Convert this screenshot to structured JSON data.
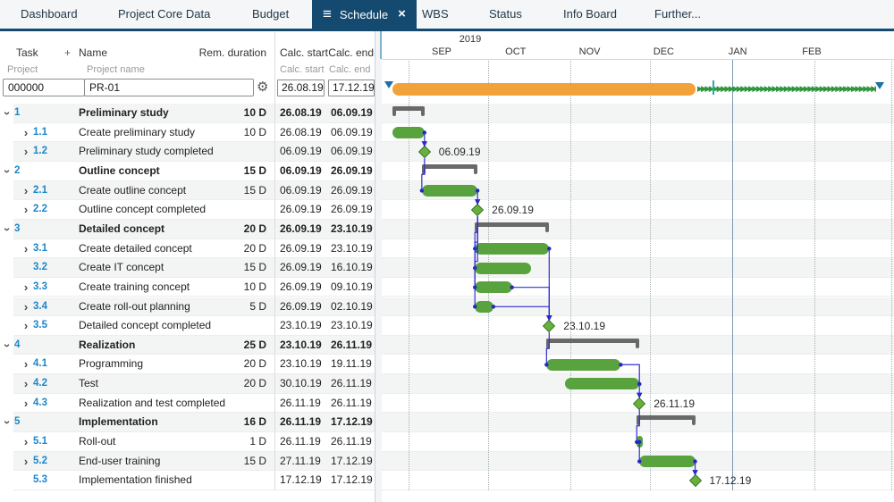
{
  "nav": {
    "tabs": [
      {
        "label": "Dashboard"
      },
      {
        "label": "Project Core Data"
      },
      {
        "label": "Budget"
      },
      {
        "label": "Schedule",
        "active": true
      },
      {
        "label": "WBS"
      },
      {
        "label": "Status"
      },
      {
        "label": "Info Board"
      },
      {
        "label": "Further..."
      }
    ]
  },
  "icons": {
    "hamburger": "≡",
    "close": "×",
    "gear": "⚙",
    "collapse_chevron": "›",
    "plus": "+",
    "buffer_arrow": "▶"
  },
  "table": {
    "header": {
      "task": "Task",
      "plus": "+",
      "name": "Name",
      "duration": "Rem. duration",
      "calc_start": "Calc. start",
      "calc_end": "Calc. end"
    },
    "subheader": {
      "project": "Project",
      "project_name": "Project name",
      "calc_start": "Calc. start",
      "calc_end": "Calc. end"
    },
    "project_row": {
      "id": "000000",
      "name": "PR-01",
      "calc_start": "26.08.19",
      "calc_end": "17.12.19"
    }
  },
  "chart_data": {
    "type": "gantt",
    "timeline": {
      "year_label": "2019",
      "months": [
        "SEP",
        "OCT",
        "NOV",
        "DEC",
        "JAN",
        "FEB"
      ],
      "month_starts": [
        "01.09.19",
        "01.10.19",
        "01.11.19",
        "01.12.19",
        "01.01.20",
        "01.02.20"
      ],
      "gridline_dates": [
        "01.09.19",
        "01.10.19",
        "01.11.19",
        "01.12.19",
        "01.01.20",
        "01.02.20",
        "01.03.20"
      ],
      "year_boundary_date": "01.01.20"
    },
    "project": {
      "start": "26.08.19",
      "end": "17.12.19"
    },
    "tasks": [
      {
        "wbs": "1",
        "name": "Preliminary study",
        "duration": "10 D",
        "start": "26.08.19",
        "end": "06.09.19",
        "type": "summary"
      },
      {
        "wbs": "1.1",
        "name": "Create preliminary study",
        "duration": "10 D",
        "start": "26.08.19",
        "end": "06.09.19",
        "type": "task"
      },
      {
        "wbs": "1.2",
        "name": "Preliminary study completed",
        "duration": "",
        "start": "06.09.19",
        "end": "06.09.19",
        "type": "milestone",
        "label": "06.09.19"
      },
      {
        "wbs": "2",
        "name": "Outline concept",
        "duration": "15 D",
        "start": "06.09.19",
        "end": "26.09.19",
        "type": "summary"
      },
      {
        "wbs": "2.1",
        "name": "Create outline concept",
        "duration": "15 D",
        "start": "06.09.19",
        "end": "26.09.19",
        "type": "task"
      },
      {
        "wbs": "2.2",
        "name": "Outline concept completed",
        "duration": "",
        "start": "26.09.19",
        "end": "26.09.19",
        "type": "milestone",
        "label": "26.09.19"
      },
      {
        "wbs": "3",
        "name": "Detailed concept",
        "duration": "20 D",
        "start": "26.09.19",
        "end": "23.10.19",
        "type": "summary"
      },
      {
        "wbs": "3.1",
        "name": "Create detailed concept",
        "duration": "20 D",
        "start": "26.09.19",
        "end": "23.10.19",
        "type": "task"
      },
      {
        "wbs": "3.2",
        "name": "Create IT concept",
        "duration": "15 D",
        "start": "26.09.19",
        "end": "16.10.19",
        "type": "task",
        "arrow": false
      },
      {
        "wbs": "3.3",
        "name": "Create training concept",
        "duration": "10 D",
        "start": "26.09.19",
        "end": "09.10.19",
        "type": "task"
      },
      {
        "wbs": "3.4",
        "name": "Create roll-out planning",
        "duration": "5 D",
        "start": "26.09.19",
        "end": "02.10.19",
        "type": "task"
      },
      {
        "wbs": "3.5",
        "name": "Detailed concept completed",
        "duration": "",
        "start": "23.10.19",
        "end": "23.10.19",
        "type": "milestone",
        "label": "23.10.19"
      },
      {
        "wbs": "4",
        "name": "Realization",
        "duration": "25 D",
        "start": "23.10.19",
        "end": "26.11.19",
        "type": "summary"
      },
      {
        "wbs": "4.1",
        "name": "Programming",
        "duration": "20 D",
        "start": "23.10.19",
        "end": "19.11.19",
        "type": "task"
      },
      {
        "wbs": "4.2",
        "name": "Test",
        "duration": "20 D",
        "start": "30.10.19",
        "end": "26.11.19",
        "type": "task"
      },
      {
        "wbs": "4.3",
        "name": "Realization and test completed",
        "duration": "",
        "start": "26.11.19",
        "end": "26.11.19",
        "type": "milestone",
        "label": "26.11.19"
      },
      {
        "wbs": "5",
        "name": "Implementation",
        "duration": "16 D",
        "start": "26.11.19",
        "end": "17.12.19",
        "type": "summary"
      },
      {
        "wbs": "5.1",
        "name": "Roll-out",
        "duration": "1 D",
        "start": "26.11.19",
        "end": "26.11.19",
        "type": "task"
      },
      {
        "wbs": "5.2",
        "name": "End-user training",
        "duration": "15 D",
        "start": "27.11.19",
        "end": "17.12.19",
        "type": "task"
      },
      {
        "wbs": "5.3",
        "name": "Implementation finished",
        "duration": "",
        "start": "17.12.19",
        "end": "17.12.19",
        "type": "milestone",
        "arrow": false,
        "label": "17.12.19"
      }
    ],
    "links": [
      {
        "from": "1.1",
        "to": "1.2"
      },
      {
        "from": "1.2",
        "to": "2.1"
      },
      {
        "from": "2.1",
        "to": "2.2"
      },
      {
        "from": "2.2",
        "to": "3.1"
      },
      {
        "from": "2.2",
        "to": "3.2"
      },
      {
        "from": "2.2",
        "to": "3.3"
      },
      {
        "from": "2.2",
        "to": "3.4"
      },
      {
        "from": "3.1",
        "to": "3.5"
      },
      {
        "from": "3.3",
        "to": "3.5"
      },
      {
        "from": "3.4",
        "to": "3.5"
      },
      {
        "from": "3.5",
        "to": "4.1"
      },
      {
        "from": "4.1",
        "to": "4.2",
        "to_anchor": "end"
      },
      {
        "from": "4.2",
        "to": "4.3"
      },
      {
        "from": "4.3",
        "to": "5.1"
      },
      {
        "from": "5.1",
        "to": "5.2"
      },
      {
        "from": "5.2",
        "to": "5.3"
      }
    ],
    "colors": {
      "bar": "#58a33e",
      "milestone": "#68b03e",
      "milestone_border": "#3e7d22",
      "summary": "#696969",
      "project_bar": "#f2a23a",
      "link": "#3030cf",
      "link_dot": "#2424c4",
      "active_tab": "#154a70",
      "wbs_number": "#1b87c9",
      "buffer": "#2f963c",
      "marker_triangle": "#1d6fa8"
    }
  }
}
